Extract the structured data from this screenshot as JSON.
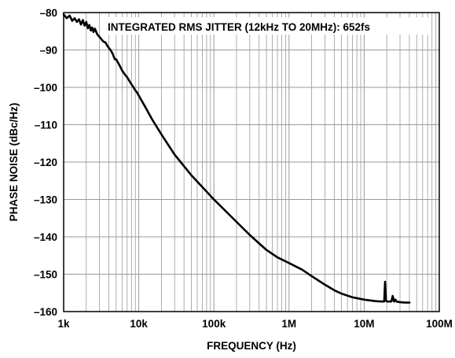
{
  "colors": {
    "background": "#ffffff",
    "axis": "#000000",
    "grid": "#9a9a9a",
    "trace": "#000000",
    "annotation_bg": "#ffffff"
  },
  "chart_data": {
    "type": "line",
    "title": "",
    "annotation": "INTEGRATED RMS JITTER (12kHz TO 20MHz): 652fs",
    "xlabel": "FREQUENCY (Hz)",
    "ylabel": "PHASE NOISE (dBc/Hz)",
    "xscale": "log",
    "xlim": [
      1000,
      100000000
    ],
    "ylim": [
      -160,
      -80
    ],
    "grid": true,
    "x_ticks": [
      {
        "value": 1000,
        "label": "1k"
      },
      {
        "value": 10000,
        "label": "10k"
      },
      {
        "value": 100000,
        "label": "100k"
      },
      {
        "value": 1000000,
        "label": "1M"
      },
      {
        "value": 10000000,
        "label": "10M"
      },
      {
        "value": 100000000,
        "label": "100M"
      }
    ],
    "y_ticks": [
      {
        "value": -80,
        "label": "–80"
      },
      {
        "value": -90,
        "label": "–90"
      },
      {
        "value": -100,
        "label": "–100"
      },
      {
        "value": -110,
        "label": "–110"
      },
      {
        "value": -120,
        "label": "–120"
      },
      {
        "value": -130,
        "label": "–130"
      },
      {
        "value": -140,
        "label": "–140"
      },
      {
        "value": -150,
        "label": "–150"
      },
      {
        "value": -160,
        "label": "–160"
      }
    ],
    "series": [
      {
        "x": [
          1000,
          1100,
          1200,
          1300,
          1400,
          1500,
          1600,
          1700,
          1800,
          1900,
          2000,
          2100,
          2200,
          2300,
          2400,
          2500,
          2600,
          2800,
          3000,
          3200,
          3400,
          3600,
          3800,
          4000,
          4200,
          4500,
          4800,
          5000,
          5500,
          6000,
          6500,
          7000,
          7500,
          8000,
          8500,
          9000,
          9500,
          10000,
          12000,
          15000,
          20000,
          30000,
          50000,
          100000,
          200000,
          300000,
          500000,
          700000,
          1000000,
          1500000,
          2000000,
          3000000,
          4000000,
          5000000,
          7000000,
          10000000,
          14000000,
          17000000,
          18500000,
          19000000,
          19500000,
          20000000,
          20500000,
          21000000,
          22000000,
          23000000,
          24000000,
          25000000,
          26000000,
          27000000,
          30000000,
          35000000,
          40000000
        ],
        "y": [
          -80.5,
          -81.5,
          -80.8,
          -82.2,
          -81.5,
          -82.5,
          -81.8,
          -83.2,
          -82.0,
          -83.5,
          -82.5,
          -84.2,
          -83.3,
          -84.8,
          -84.0,
          -85.2,
          -84.3,
          -85.8,
          -86.5,
          -87.2,
          -87.8,
          -88.0,
          -88.8,
          -89.5,
          -90.0,
          -91.0,
          -92.5,
          -92.5,
          -94.0,
          -95.5,
          -96.5,
          -97.3,
          -98.3,
          -99.2,
          -100.0,
          -100.8,
          -101.4,
          -102.2,
          -105.0,
          -108.5,
          -112.6,
          -118.0,
          -123.5,
          -130.0,
          -136.0,
          -139.5,
          -143.5,
          -145.5,
          -147.0,
          -148.8,
          -150.5,
          -152.8,
          -154.3,
          -155.2,
          -156.2,
          -156.8,
          -157.2,
          -157.3,
          -157.3,
          -152.0,
          -157.0,
          -157.3,
          -157.3,
          -157.3,
          -157.3,
          -157.3,
          -155.8,
          -157.3,
          -156.8,
          -157.3,
          -157.5,
          -157.6,
          -157.6
        ]
      }
    ]
  }
}
